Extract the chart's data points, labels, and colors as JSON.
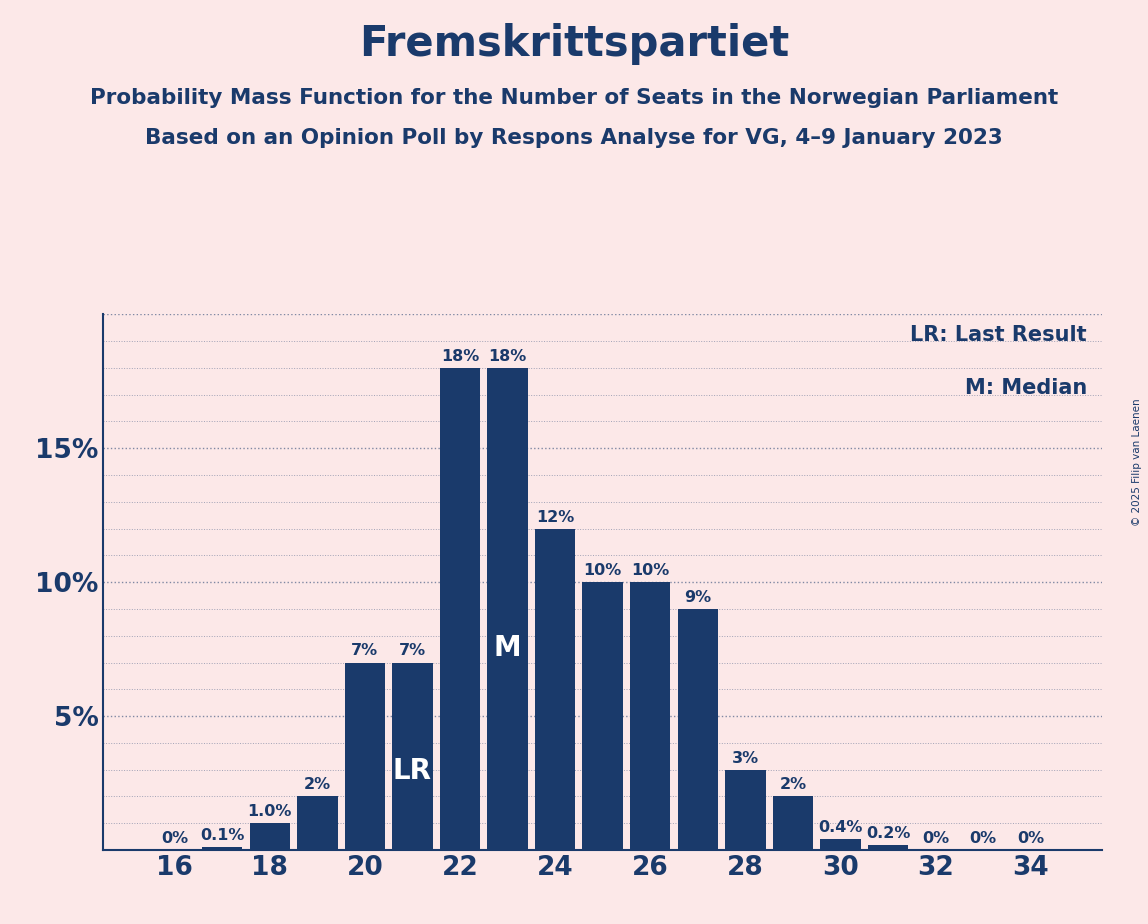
{
  "title": "Fremskrittspartiet",
  "subtitle1": "Probability Mass Function for the Number of Seats in the Norwegian Parliament",
  "subtitle2": "Based on an Opinion Poll by Respons Analyse for VG, 4–9 January 2023",
  "copyright": "© 2025 Filip van Laenen",
  "background_color": "#fce8e8",
  "bar_color": "#1a3a6b",
  "text_color": "#1a3a6b",
  "seats": [
    16,
    17,
    18,
    19,
    20,
    21,
    22,
    23,
    24,
    25,
    26,
    27,
    28,
    29,
    30,
    31,
    32,
    33,
    34
  ],
  "probabilities": [
    0.0,
    0.1,
    1.0,
    2.0,
    7.0,
    7.0,
    18.0,
    18.0,
    12.0,
    10.0,
    10.0,
    9.0,
    3.0,
    2.0,
    0.4,
    0.2,
    0.0,
    0.0,
    0.0
  ],
  "labels": [
    "0%",
    "0.1%",
    "1.0%",
    "2%",
    "7%",
    "7%",
    "18%",
    "18%",
    "12%",
    "10%",
    "10%",
    "9%",
    "3%",
    "2%",
    "0.4%",
    "0.2%",
    "0%",
    "0%",
    "0%"
  ],
  "LR_seat": 21,
  "median_seat": 23,
  "ylim": [
    0,
    20
  ],
  "yticks": [
    0,
    5,
    10,
    15,
    20
  ],
  "ytick_labels": [
    "",
    "5%",
    "10%",
    "15%",
    ""
  ],
  "xtick_seats": [
    16,
    18,
    20,
    22,
    24,
    26,
    28,
    30,
    32,
    34
  ],
  "legend_lr": "LR: Last Result",
  "legend_m": "M: Median",
  "label_lr": "LR",
  "label_m": "M",
  "bar_width": 0.85
}
